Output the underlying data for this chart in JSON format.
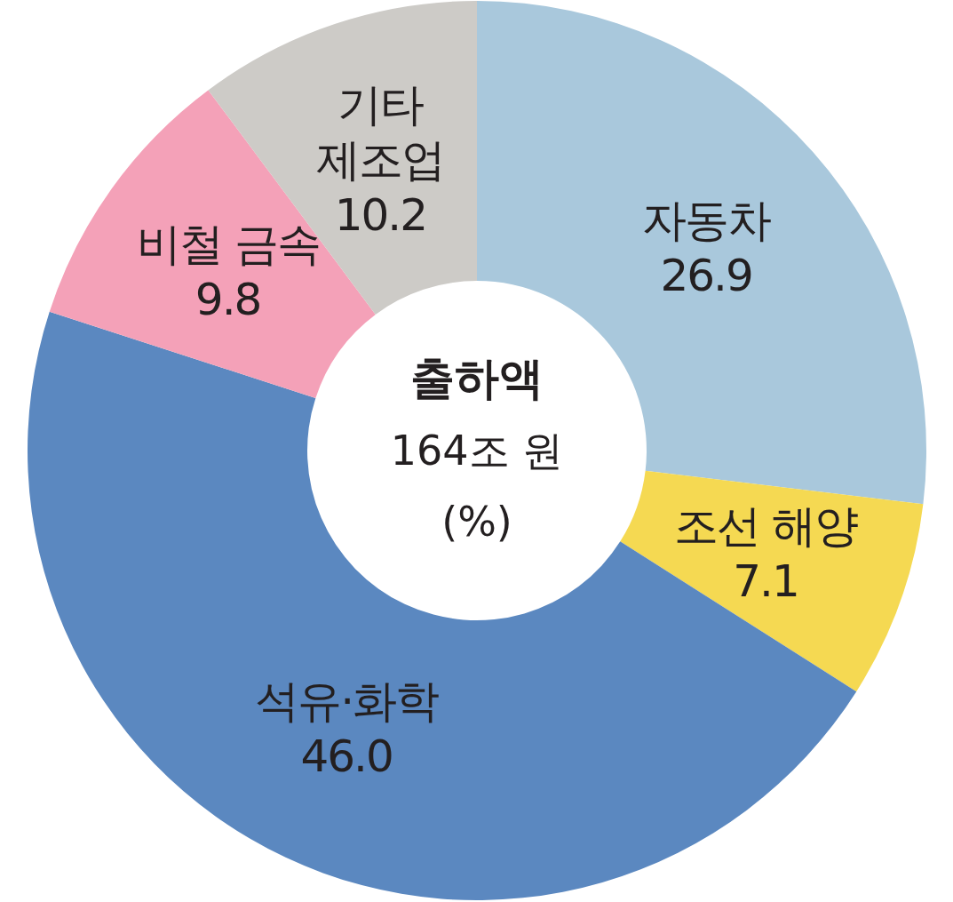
{
  "chart_data": {
    "type": "donut",
    "title": "출하액",
    "subtitle": "164조 원",
    "annotations": [
      "(%)"
    ],
    "categories": [
      "자동차",
      "조선 해양",
      "석유·화학",
      "비철 금속",
      "기타 제조업"
    ],
    "values": [
      26.9,
      7.1,
      46.0,
      9.8,
      10.2
    ],
    "colors": [
      "#a9c8dc",
      "#f5d952",
      "#5b88c0",
      "#f4a1b8",
      "#cdcbc7"
    ],
    "value_labels": [
      "26.9",
      "7.1",
      "46.0",
      "9.8",
      "10.2"
    ]
  }
}
